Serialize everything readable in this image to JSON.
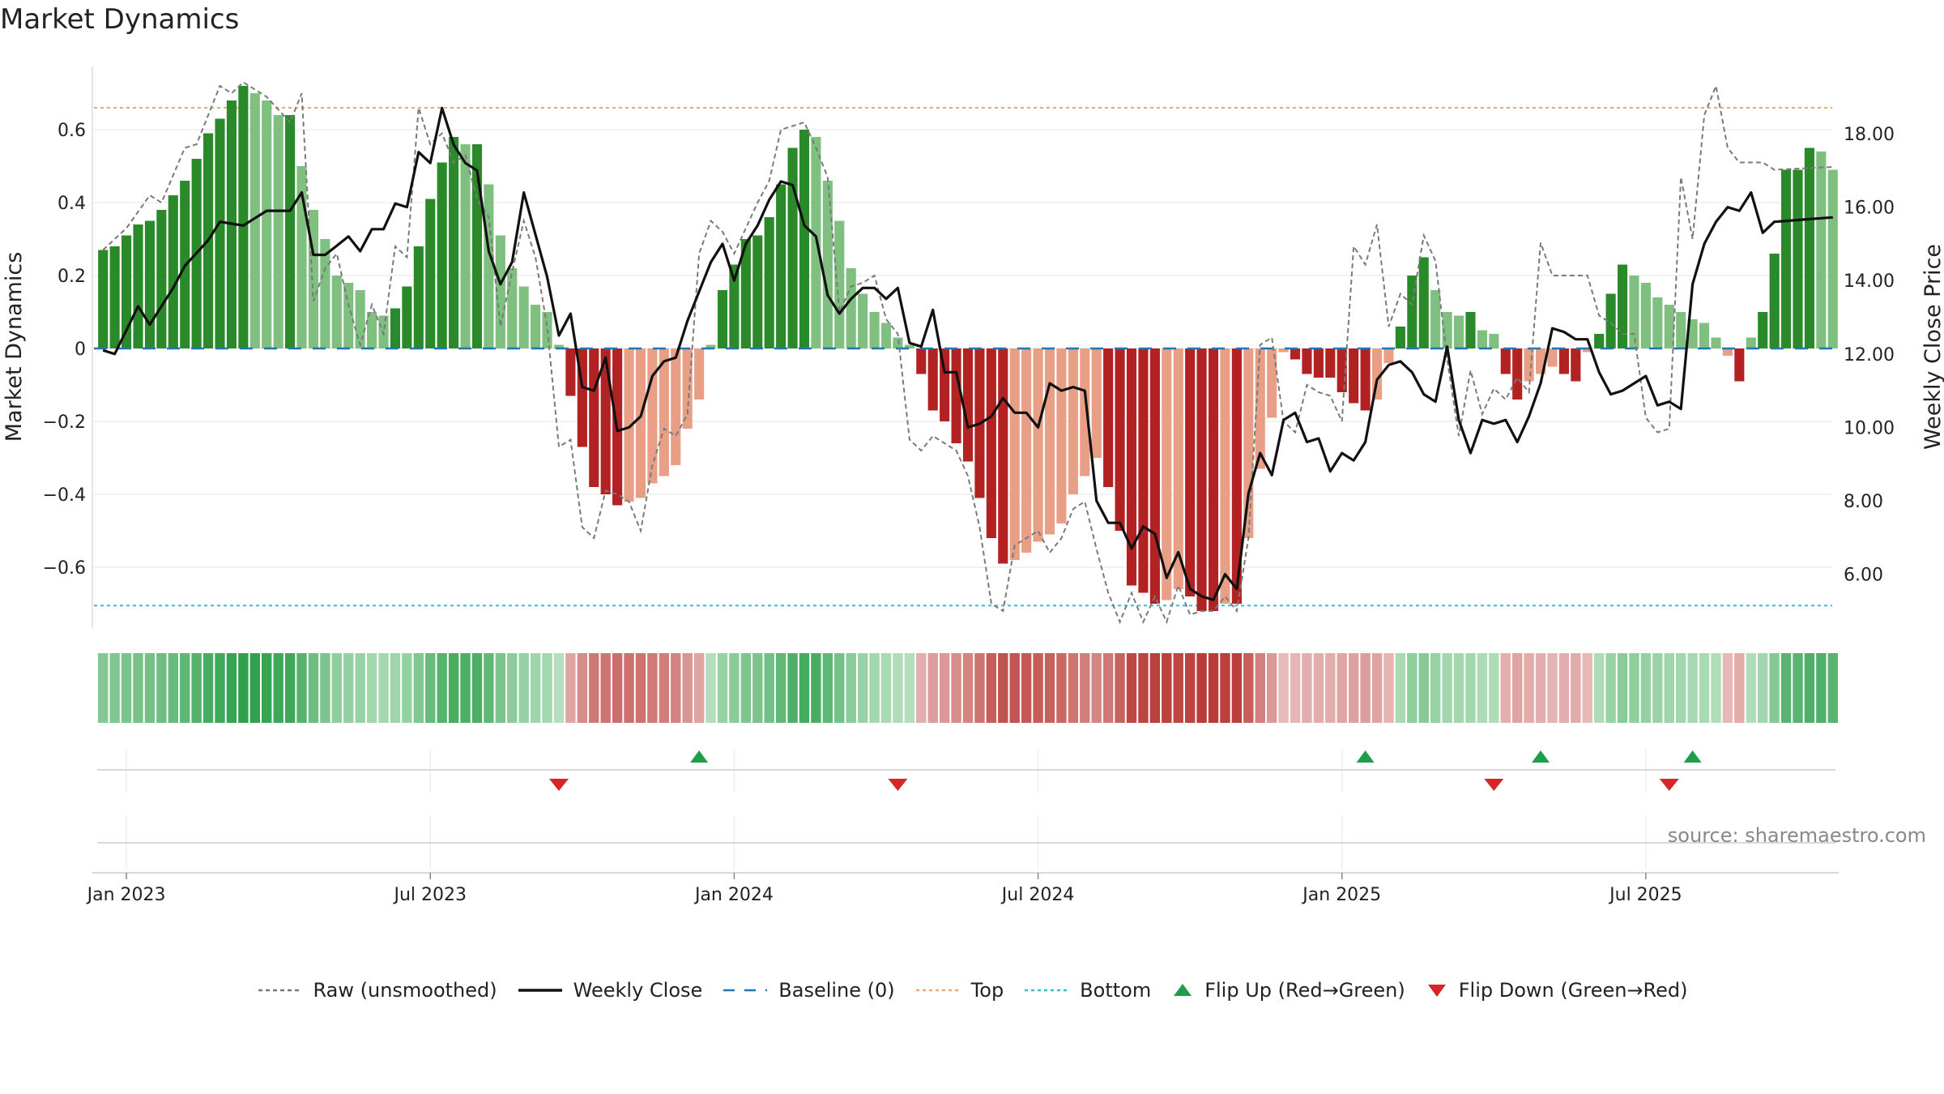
{
  "chart_data": {
    "type": "bar",
    "title": "Market Dynamics",
    "ylabel_left": "Market Dynamics",
    "ylabel_right": "Weekly Close Price",
    "ylim_left": [
      -0.76,
      0.76
    ],
    "ylim_right": [
      4.6,
      19.7
    ],
    "left_ticks": [
      {
        "v": 0.6,
        "t": "0.6"
      },
      {
        "v": 0.4,
        "t": "0.4"
      },
      {
        "v": 0.2,
        "t": "0.2"
      },
      {
        "v": 0,
        "t": "0"
      },
      {
        "v": -0.2,
        "t": "−0.2"
      },
      {
        "v": -0.4,
        "t": "−0.4"
      },
      {
        "v": -0.6,
        "t": "−0.6"
      }
    ],
    "right_ticks": [
      {
        "v": 18,
        "t": "18.00"
      },
      {
        "v": 16,
        "t": "16.00"
      },
      {
        "v": 14,
        "t": "14.00"
      },
      {
        "v": 12,
        "t": "12.00"
      },
      {
        "v": 10,
        "t": "10.00"
      },
      {
        "v": 8,
        "t": "8.00"
      },
      {
        "v": 6,
        "t": "6.00"
      }
    ],
    "x_ticks": [
      {
        "i": 2,
        "t": "Jan 2023"
      },
      {
        "i": 28,
        "t": "Jul 2023"
      },
      {
        "i": 54,
        "t": "Jan 2024"
      },
      {
        "i": 80,
        "t": "Jul 2024"
      },
      {
        "i": 106,
        "t": "Jan 2025"
      },
      {
        "i": 132,
        "t": "Jul 2025"
      }
    ],
    "top_level": 0.66,
    "bottom_level": -0.705,
    "baseline": 0,
    "dynamics": [
      0.27,
      0.28,
      0.31,
      0.34,
      0.35,
      0.38,
      0.42,
      0.46,
      0.52,
      0.59,
      0.63,
      0.68,
      0.72,
      0.7,
      0.68,
      0.64,
      0.64,
      0.5,
      0.38,
      0.3,
      0.2,
      0.18,
      0.16,
      0.1,
      0.09,
      0.11,
      0.17,
      0.28,
      0.41,
      0.51,
      0.58,
      0.56,
      0.56,
      0.45,
      0.31,
      0.22,
      0.17,
      0.12,
      0.1,
      0.01,
      -0.13,
      -0.27,
      -0.38,
      -0.4,
      -0.43,
      -0.42,
      -0.41,
      -0.37,
      -0.35,
      -0.32,
      -0.22,
      -0.14,
      0.01,
      0.16,
      0.23,
      0.3,
      0.31,
      0.36,
      0.45,
      0.55,
      0.6,
      0.58,
      0.46,
      0.35,
      0.22,
      0.15,
      0.1,
      0.07,
      0.03,
      0.01,
      -0.07,
      -0.17,
      -0.2,
      -0.26,
      -0.31,
      -0.41,
      -0.52,
      -0.59,
      -0.58,
      -0.56,
      -0.53,
      -0.51,
      -0.48,
      -0.4,
      -0.35,
      -0.3,
      -0.38,
      -0.5,
      -0.65,
      -0.67,
      -0.7,
      -0.69,
      -0.66,
      -0.68,
      -0.72,
      -0.72,
      -0.7,
      -0.7,
      -0.52,
      -0.33,
      -0.19,
      -0.01,
      -0.03,
      -0.07,
      -0.08,
      -0.08,
      -0.12,
      -0.15,
      -0.17,
      -0.14,
      -0.04,
      0.06,
      0.2,
      0.25,
      0.16,
      0.1,
      0.09,
      0.1,
      0.05,
      0.04,
      -0.07,
      -0.14,
      -0.09,
      -0.07,
      -0.05,
      -0.07,
      -0.09,
      -0.01,
      0.04,
      0.15,
      0.23,
      0.2,
      0.18,
      0.14,
      0.12,
      0.1,
      0.08,
      0.07,
      0.03,
      -0.02,
      -0.09,
      0.03,
      0.1,
      0.26,
      0.49,
      0.49,
      0.55,
      0.54,
      0.49
    ],
    "flip_up_weeks": [
      51,
      108,
      123,
      136
    ],
    "flip_down_weeks": [
      39,
      68,
      119,
      134
    ],
    "close_price_anchors": [
      [
        0,
        12.1
      ],
      [
        1,
        12.0
      ],
      [
        3,
        13.3
      ],
      [
        4,
        12.8
      ],
      [
        6,
        13.8
      ],
      [
        7,
        14.4
      ],
      [
        9,
        15.1
      ],
      [
        10,
        15.6
      ],
      [
        12,
        15.5
      ],
      [
        14,
        15.9
      ],
      [
        16,
        15.9
      ],
      [
        17,
        16.4
      ],
      [
        18,
        14.7
      ],
      [
        19,
        14.7
      ],
      [
        21,
        15.2
      ],
      [
        22,
        14.8
      ],
      [
        23,
        15.4
      ],
      [
        24,
        15.4
      ],
      [
        25,
        16.1
      ],
      [
        26,
        16.0
      ],
      [
        27,
        17.5
      ],
      [
        28,
        17.2
      ],
      [
        29,
        18.7
      ],
      [
        30,
        17.7
      ],
      [
        31,
        17.2
      ],
      [
        32,
        17.0
      ],
      [
        33,
        14.8
      ],
      [
        34,
        13.9
      ],
      [
        35,
        14.5
      ],
      [
        36,
        16.4
      ],
      [
        38,
        14.1
      ],
      [
        39,
        12.5
      ],
      [
        40,
        13.1
      ],
      [
        41,
        11.1
      ],
      [
        42,
        11.0
      ],
      [
        43,
        11.9
      ],
      [
        44,
        9.9
      ],
      [
        45,
        10.0
      ],
      [
        46,
        10.3
      ],
      [
        47,
        11.4
      ],
      [
        48,
        11.8
      ],
      [
        49,
        11.9
      ],
      [
        50,
        12.9
      ],
      [
        52,
        14.5
      ],
      [
        53,
        15.0
      ],
      [
        54,
        14.0
      ],
      [
        55,
        15.0
      ],
      [
        56,
        15.5
      ],
      [
        57,
        16.2
      ],
      [
        58,
        16.7
      ],
      [
        59,
        16.6
      ],
      [
        60,
        15.5
      ],
      [
        61,
        15.2
      ],
      [
        62,
        13.6
      ],
      [
        63,
        13.1
      ],
      [
        64,
        13.5
      ],
      [
        65,
        13.8
      ],
      [
        66,
        13.8
      ],
      [
        67,
        13.5
      ],
      [
        68,
        13.8
      ],
      [
        69,
        12.3
      ],
      [
        70,
        12.2
      ],
      [
        71,
        13.2
      ],
      [
        72,
        11.5
      ],
      [
        73,
        11.5
      ],
      [
        74,
        10.0
      ],
      [
        75,
        10.1
      ],
      [
        76,
        10.3
      ],
      [
        77,
        10.8
      ],
      [
        78,
        10.4
      ],
      [
        79,
        10.4
      ],
      [
        80,
        10.0
      ],
      [
        81,
        11.2
      ],
      [
        82,
        11.0
      ],
      [
        83,
        11.1
      ],
      [
        84,
        11.0
      ],
      [
        85,
        8.0
      ],
      [
        86,
        7.4
      ],
      [
        87,
        7.4
      ],
      [
        88,
        6.7
      ],
      [
        89,
        7.3
      ],
      [
        90,
        7.1
      ],
      [
        91,
        5.9
      ],
      [
        92,
        6.6
      ],
      [
        93,
        5.6
      ],
      [
        94,
        5.4
      ],
      [
        95,
        5.3
      ],
      [
        96,
        6.0
      ],
      [
        97,
        5.6
      ],
      [
        98,
        8.2
      ],
      [
        99,
        9.3
      ],
      [
        100,
        8.7
      ],
      [
        101,
        10.2
      ],
      [
        102,
        10.4
      ],
      [
        103,
        9.6
      ],
      [
        104,
        9.7
      ],
      [
        105,
        8.8
      ],
      [
        106,
        9.3
      ],
      [
        107,
        9.1
      ],
      [
        108,
        9.6
      ],
      [
        109,
        11.3
      ],
      [
        110,
        11.7
      ],
      [
        111,
        11.8
      ],
      [
        112,
        11.5
      ],
      [
        113,
        10.9
      ],
      [
        114,
        10.7
      ],
      [
        115,
        12.2
      ],
      [
        116,
        10.2
      ],
      [
        117,
        9.3
      ],
      [
        118,
        10.2
      ],
      [
        119,
        10.1
      ],
      [
        120,
        10.2
      ],
      [
        121,
        9.6
      ],
      [
        122,
        10.3
      ],
      [
        123,
        11.2
      ],
      [
        124,
        12.7
      ],
      [
        125,
        12.6
      ],
      [
        126,
        12.4
      ],
      [
        127,
        12.4
      ],
      [
        128,
        11.5
      ],
      [
        129,
        10.9
      ],
      [
        130,
        11.0
      ],
      [
        131,
        11.2
      ],
      [
        132,
        11.4
      ],
      [
        133,
        10.6
      ],
      [
        134,
        10.7
      ],
      [
        135,
        10.5
      ],
      [
        136,
        13.9
      ],
      [
        137,
        15.0
      ],
      [
        138,
        15.6
      ],
      [
        139,
        16.0
      ],
      [
        140,
        15.9
      ],
      [
        141,
        16.4
      ],
      [
        142,
        15.3
      ],
      [
        143,
        15.6
      ]
    ],
    "raw_anchors": [
      [
        0,
        0.27
      ],
      [
        2,
        0.33
      ],
      [
        4,
        0.42
      ],
      [
        5,
        0.4
      ],
      [
        7,
        0.55
      ],
      [
        8,
        0.56
      ],
      [
        10,
        0.72
      ],
      [
        11,
        0.7
      ],
      [
        12,
        0.73
      ],
      [
        14,
        0.69
      ],
      [
        16,
        0.62
      ],
      [
        17,
        0.7
      ],
      [
        18,
        0.13
      ],
      [
        19,
        0.22
      ],
      [
        20,
        0.26
      ],
      [
        21,
        0.12
      ],
      [
        22,
        0.01
      ],
      [
        23,
        0.12
      ],
      [
        24,
        0.04
      ],
      [
        25,
        0.28
      ],
      [
        26,
        0.25
      ],
      [
        27,
        0.66
      ],
      [
        28,
        0.56
      ],
      [
        29,
        0.59
      ],
      [
        30,
        0.51
      ],
      [
        31,
        0.53
      ],
      [
        32,
        0.41
      ],
      [
        33,
        0.36
      ],
      [
        34,
        0.06
      ],
      [
        35,
        0.21
      ],
      [
        36,
        0.35
      ],
      [
        37,
        0.25
      ],
      [
        38,
        0.06
      ],
      [
        39,
        -0.27
      ],
      [
        40,
        -0.25
      ],
      [
        41,
        -0.49
      ],
      [
        42,
        -0.52
      ],
      [
        43,
        -0.39
      ],
      [
        44,
        -0.4
      ],
      [
        45,
        -0.42
      ],
      [
        46,
        -0.5
      ],
      [
        47,
        -0.32
      ],
      [
        48,
        -0.22
      ],
      [
        49,
        -0.24
      ],
      [
        50,
        -0.18
      ],
      [
        51,
        0.26
      ],
      [
        52,
        0.35
      ],
      [
        53,
        0.32
      ],
      [
        54,
        0.26
      ],
      [
        56,
        0.4
      ],
      [
        57,
        0.46
      ],
      [
        58,
        0.6
      ],
      [
        60,
        0.62
      ],
      [
        61,
        0.55
      ],
      [
        62,
        0.47
      ],
      [
        63,
        0.1
      ],
      [
        64,
        0.17
      ],
      [
        65,
        0.18
      ],
      [
        66,
        0.2
      ],
      [
        67,
        0.08
      ],
      [
        68,
        0.04
      ],
      [
        69,
        -0.25
      ],
      [
        70,
        -0.28
      ],
      [
        71,
        -0.24
      ],
      [
        72,
        -0.26
      ],
      [
        73,
        -0.28
      ],
      [
        74,
        -0.35
      ],
      [
        75,
        -0.49
      ],
      [
        76,
        -0.7
      ],
      [
        77,
        -0.72
      ],
      [
        78,
        -0.54
      ],
      [
        79,
        -0.52
      ],
      [
        80,
        -0.5
      ],
      [
        81,
        -0.56
      ],
      [
        82,
        -0.52
      ],
      [
        83,
        -0.44
      ],
      [
        84,
        -0.42
      ],
      [
        85,
        -0.55
      ],
      [
        86,
        -0.67
      ],
      [
        87,
        -0.75
      ],
      [
        88,
        -0.67
      ],
      [
        89,
        -0.75
      ],
      [
        90,
        -0.68
      ],
      [
        91,
        -0.75
      ],
      [
        92,
        -0.65
      ],
      [
        93,
        -0.73
      ],
      [
        94,
        -0.72
      ],
      [
        95,
        -0.72
      ],
      [
        96,
        -0.68
      ],
      [
        97,
        -0.72
      ],
      [
        98,
        -0.52
      ],
      [
        99,
        0.01
      ],
      [
        100,
        0.03
      ],
      [
        101,
        -0.2
      ],
      [
        102,
        -0.23
      ],
      [
        103,
        -0.1
      ],
      [
        104,
        -0.12
      ],
      [
        105,
        -0.13
      ],
      [
        106,
        -0.2
      ],
      [
        107,
        0.28
      ],
      [
        108,
        0.23
      ],
      [
        109,
        0.34
      ],
      [
        110,
        0.06
      ],
      [
        111,
        0.15
      ],
      [
        112,
        0.12
      ],
      [
        113,
        0.31
      ],
      [
        114,
        0.24
      ],
      [
        115,
        -0.03
      ],
      [
        116,
        -0.24
      ],
      [
        117,
        -0.06
      ],
      [
        118,
        -0.18
      ],
      [
        119,
        -0.11
      ],
      [
        120,
        -0.14
      ],
      [
        121,
        -0.08
      ],
      [
        122,
        -0.12
      ],
      [
        123,
        0.29
      ],
      [
        124,
        0.2
      ],
      [
        125,
        0.2
      ],
      [
        126,
        0.2
      ],
      [
        127,
        0.2
      ],
      [
        128,
        0.09
      ],
      [
        129,
        0.07
      ],
      [
        130,
        0.04
      ],
      [
        131,
        0.04
      ],
      [
        132,
        -0.19
      ],
      [
        133,
        -0.23
      ],
      [
        134,
        -0.22
      ],
      [
        135,
        0.47
      ],
      [
        136,
        0.3
      ],
      [
        137,
        0.64
      ],
      [
        138,
        0.72
      ],
      [
        139,
        0.55
      ],
      [
        140,
        0.51
      ],
      [
        141,
        0.51
      ],
      [
        142,
        0.51
      ],
      [
        143,
        0.49
      ]
    ],
    "legend": [
      {
        "label": "Raw (unsmoothed)",
        "kind": "dashed",
        "color": "#777777"
      },
      {
        "label": "Weekly Close",
        "kind": "solid",
        "color": "#111111"
      },
      {
        "label": "Baseline (0)",
        "kind": "longdash",
        "color": "#1f77b4"
      },
      {
        "label": "Top",
        "kind": "dotted",
        "color": "#f0a868"
      },
      {
        "label": "Bottom",
        "kind": "dotted",
        "color": "#36c0d0"
      },
      {
        "label": "Flip Up (Red→Green)",
        "kind": "tri-up",
        "color": "#1e9e4a"
      },
      {
        "label": "Flip Down (Green→Red)",
        "kind": "tri-down",
        "color": "#d62728"
      }
    ],
    "colors": {
      "pos_strong": "#2a8a2a",
      "pos_weak": "#7fbf7f",
      "neg_strong": "#b22222",
      "neg_weak": "#e89f86",
      "grid": "#e6e6e6",
      "top": "#f0a868",
      "bottom": "#36c0d0",
      "baseline": "#1f77b4"
    },
    "source": "source: sharemaestro.com"
  }
}
